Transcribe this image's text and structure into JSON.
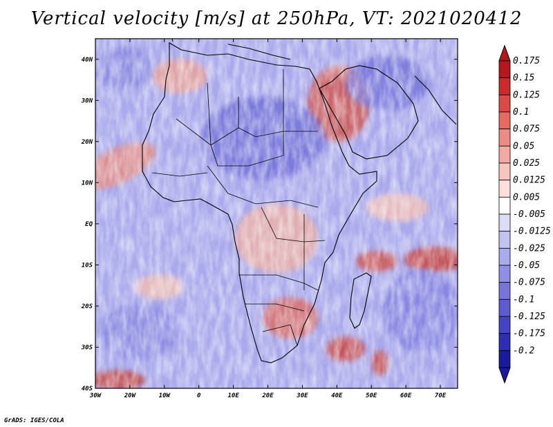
{
  "title": "Vertical velocity [m/s] at 250hPa, VT: 2021020412",
  "credit": "GrADS: IGES/COLA",
  "map": {
    "lon_range": [
      -30,
      75
    ],
    "lat_range": [
      -40,
      45
    ],
    "lat_ticks": [
      "40N",
      "30N",
      "20N",
      "10N",
      "EQ",
      "10S",
      "20S",
      "30S",
      "40S"
    ],
    "lon_ticks": [
      "30W",
      "20W",
      "10W",
      "0",
      "10E",
      "20E",
      "30E",
      "40E",
      "50E",
      "60E",
      "70E"
    ]
  },
  "colorbar": {
    "labels": [
      "0.175",
      "0.15",
      "0.125",
      "0.1",
      "0.075",
      "0.05",
      "0.025",
      "0.0125",
      "0.005",
      "-0.005",
      "-0.0125",
      "-0.025",
      "-0.05",
      "-0.075",
      "-0.1",
      "-0.125",
      "-0.175",
      "-0.2"
    ],
    "colors": [
      "#b4161d",
      "#cc2a2a",
      "#dc4a45",
      "#e66a62",
      "#ee8b82",
      "#f3aaa2",
      "#f7c6be",
      "#fbe0db",
      "#ffffff",
      "#dcdcf7",
      "#c3c3f2",
      "#aaaaee",
      "#8f8fe6",
      "#7575dc",
      "#5c5cd0",
      "#4444c4",
      "#2e2eb4",
      "#1a1a9c"
    ]
  }
}
